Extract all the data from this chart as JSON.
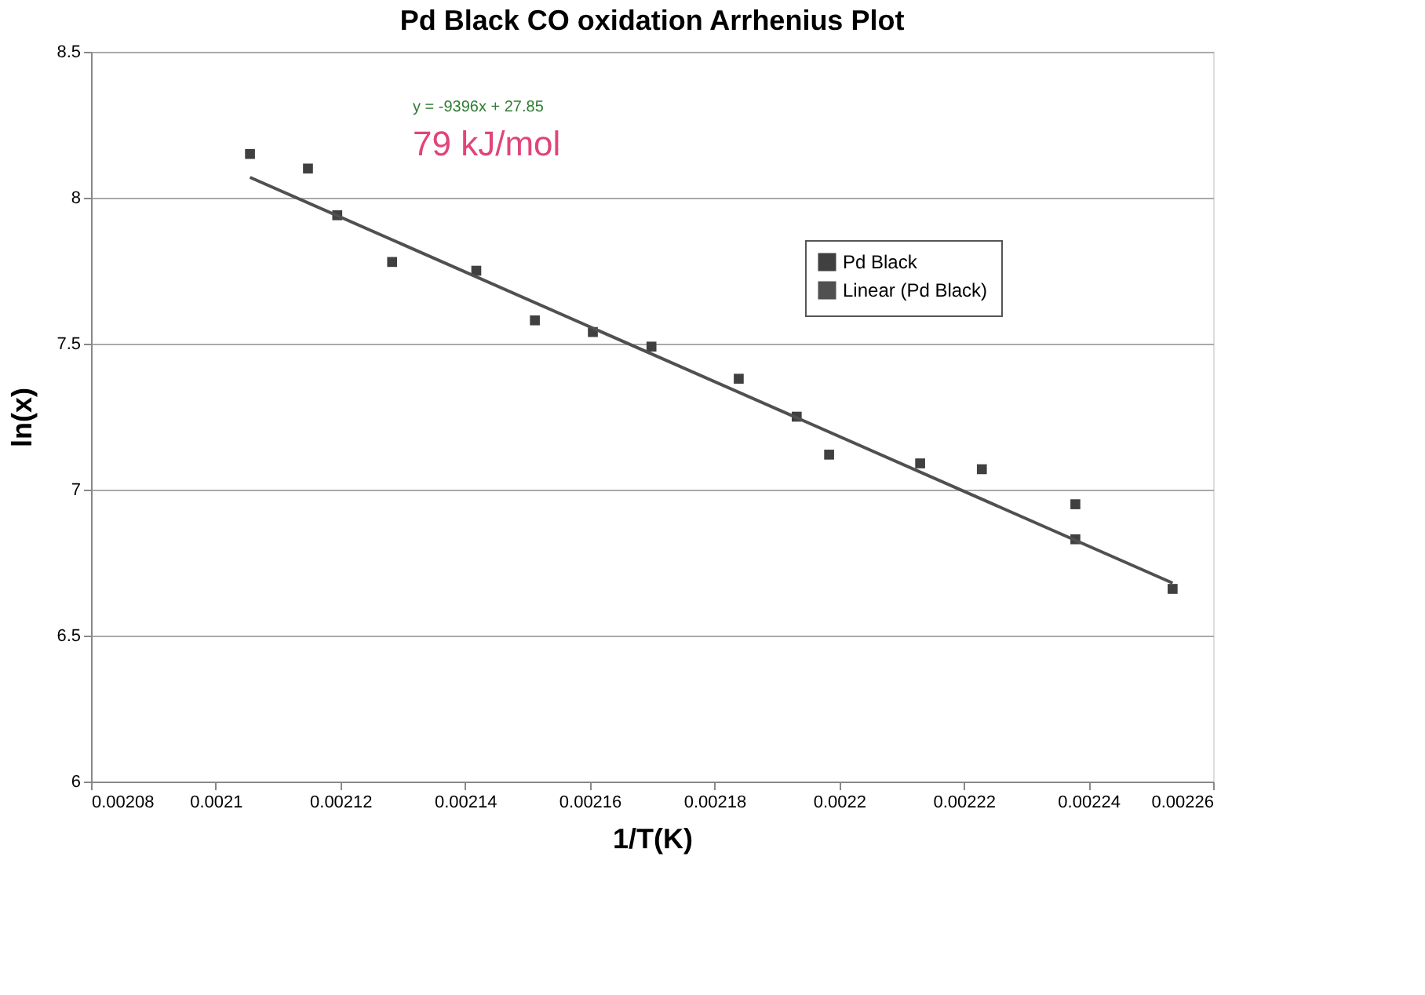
{
  "chart_data": {
    "type": "scatter",
    "title": "Pd Black CO oxidation Arrhenius Plot",
    "xlabel": "1/T(K)",
    "ylabel": "ln(x)",
    "x": [
      0.0021055,
      0.0021148,
      0.0021195,
      0.0021283,
      0.0021418,
      0.0021512,
      0.0021605,
      0.0021699,
      0.0021839,
      0.0021932,
      0.0021984,
      0.002213,
      0.0022229,
      0.0022379,
      0.0022379,
      0.0022535
    ],
    "series": [
      {
        "name": "Pd Black",
        "color": "#404040",
        "marker": "square",
        "values": [
          8.15,
          8.1,
          7.94,
          7.78,
          7.75,
          7.58,
          7.54,
          7.49,
          7.38,
          7.25,
          7.12,
          7.09,
          7.07,
          6.95,
          6.83,
          6.66
        ]
      },
      {
        "name": "Linear (Pd Black)",
        "type": "line",
        "color": "#505050",
        "line_style": "solid",
        "x": [
          0.0021055,
          0.0022535
        ],
        "values": [
          8.07,
          6.68
        ]
      }
    ],
    "annotations": [
      "y = -9396x + 27.85",
      "79 kJ/mol"
    ],
    "xlim": [
      0.00208,
      0.00226
    ],
    "xticks": [
      0.00208,
      0.0021,
      0.00212,
      0.00214,
      0.00216,
      0.00218,
      0.0022,
      0.00222,
      0.00224,
      0.00226
    ],
    "ylim": [
      6,
      8.5
    ],
    "yticks": [
      6,
      6.5,
      7,
      7.5,
      8,
      8.5
    ],
    "grid": "y",
    "legend": "top right"
  }
}
